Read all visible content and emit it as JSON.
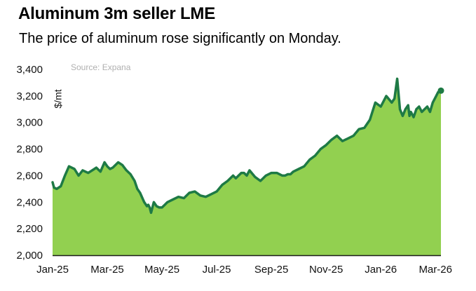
{
  "chart_data": {
    "type": "area",
    "title": "Aluminum 3m seller LME",
    "subtitle": "The price of aluminum rose significantly on Monday.",
    "source": "Source: Expana",
    "ylabel": "$/mt",
    "xlabel": "",
    "ylim": [
      2000,
      3400
    ],
    "yticks": [
      2000,
      2200,
      2400,
      2600,
      2800,
      3000,
      3200,
      3400
    ],
    "ytick_labels": [
      "2,000",
      "2,200",
      "2,400",
      "2,600",
      "2,800",
      "3,000",
      "3,200",
      "3,400"
    ],
    "xlim": [
      0,
      14.2
    ],
    "x_ticks": [
      0,
      2,
      4,
      6,
      8,
      10,
      12,
      14
    ],
    "x_tick_labels": [
      "Jan-25",
      "Mar-25",
      "May-25",
      "Jul-25",
      "Sep-25",
      "Nov-25",
      "Jan-26",
      "Mar-26"
    ],
    "grid": false,
    "colors": {
      "fill": "#92d050",
      "line": "#1e7a45",
      "last_point": "#1e7a45"
    },
    "series": [
      {
        "name": "Aluminum 3m seller LME ($/mt)",
        "x": [
          0.0,
          0.05,
          0.15,
          0.3,
          0.45,
          0.6,
          0.8,
          0.95,
          1.1,
          1.3,
          1.45,
          1.6,
          1.75,
          1.9,
          2.0,
          2.1,
          2.2,
          2.4,
          2.55,
          2.7,
          2.85,
          3.0,
          3.1,
          3.2,
          3.35,
          3.45,
          3.5,
          3.55,
          3.6,
          3.7,
          3.8,
          3.9,
          4.0,
          4.1,
          4.2,
          4.4,
          4.6,
          4.8,
          5.0,
          5.2,
          5.4,
          5.6,
          5.8,
          6.0,
          6.2,
          6.4,
          6.6,
          6.7,
          6.8,
          6.9,
          7.0,
          7.1,
          7.2,
          7.4,
          7.6,
          7.8,
          8.0,
          8.2,
          8.4,
          8.5,
          8.6,
          8.7,
          8.8,
          9.0,
          9.2,
          9.4,
          9.6,
          9.8,
          10.0,
          10.2,
          10.4,
          10.6,
          10.8,
          11.0,
          11.2,
          11.4,
          11.6,
          11.8,
          12.0,
          12.2,
          12.4,
          12.5,
          12.6,
          12.7,
          12.8,
          12.9,
          13.0,
          13.05,
          13.1,
          13.2,
          13.3,
          13.4,
          13.5,
          13.6,
          13.7,
          13.8,
          13.9,
          14.0,
          14.1,
          14.2
        ],
        "values": [
          2550,
          2510,
          2500,
          2520,
          2600,
          2670,
          2650,
          2600,
          2640,
          2620,
          2640,
          2660,
          2630,
          2700,
          2670,
          2650,
          2660,
          2700,
          2680,
          2640,
          2610,
          2560,
          2500,
          2470,
          2400,
          2370,
          2380,
          2360,
          2320,
          2400,
          2370,
          2360,
          2360,
          2380,
          2400,
          2420,
          2440,
          2430,
          2470,
          2480,
          2450,
          2440,
          2460,
          2480,
          2530,
          2560,
          2600,
          2580,
          2600,
          2620,
          2620,
          2600,
          2640,
          2590,
          2560,
          2600,
          2620,
          2620,
          2600,
          2600,
          2610,
          2610,
          2630,
          2650,
          2670,
          2720,
          2750,
          2800,
          2830,
          2870,
          2900,
          2860,
          2880,
          2900,
          2950,
          2960,
          3020,
          3150,
          3120,
          3200,
          3150,
          3180,
          3330,
          3100,
          3050,
          3100,
          3130,
          3050,
          3080,
          3040,
          3100,
          3120,
          3080,
          3100,
          3120,
          3080,
          3150,
          3190,
          3230,
          3240
        ]
      }
    ]
  }
}
